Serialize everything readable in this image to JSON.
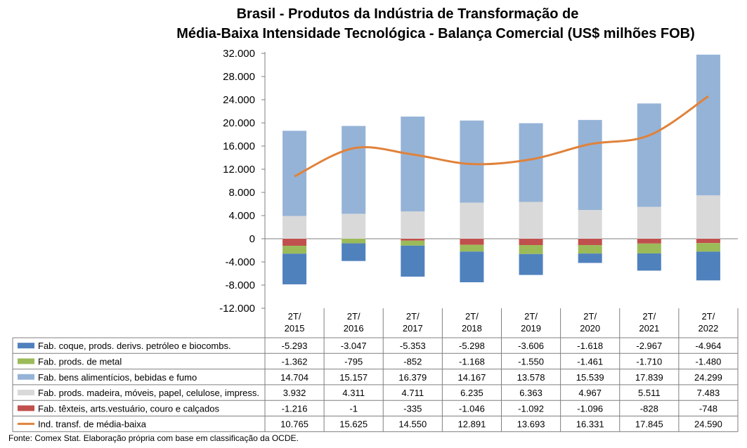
{
  "title_line1": "Brasil - Produtos da Indústria de Transformação de",
  "title_line2": "Média-Baixa Intensidade Tecnológica - Balança Comercial (US$ milhões FOB)",
  "source": "Fonte: Comex Stat. Elaboração própria com base em classificação da OCDE.",
  "chart_data": {
    "type": "bar",
    "stacked": true,
    "title": "Brasil - Produtos da Indústria de Transformação de Média-Baixa Intensidade Tecnológica - Balança Comercial (US$ milhões FOB)",
    "categories": [
      "2T/\n2015",
      "2T/\n2016",
      "2T/\n2017",
      "2T/\n2018",
      "2T/\n2019",
      "2T/\n2020",
      "2T/\n2021",
      "2T/\n2022"
    ],
    "ylim": [
      -12000,
      32000
    ],
    "yticks": [
      32000,
      28000,
      24000,
      20000,
      16000,
      12000,
      8000,
      4000,
      0,
      -4000,
      -8000,
      -12000
    ],
    "ytick_labels": [
      "32.000",
      "28.000",
      "24.000",
      "20.000",
      "16.000",
      "12.000",
      "8.000",
      "4.000",
      "0",
      "-4.000",
      "-8.000",
      "-12.000"
    ],
    "grid": false,
    "legend": "data-table",
    "series": [
      {
        "name": "Fab. coque, prods. derivs. petróleo e biocombs.",
        "color": "#4f81bd",
        "kind": "bar",
        "values": [
          -5293,
          -3047,
          -5353,
          -5298,
          -3606,
          -1618,
          -2967,
          -4964
        ],
        "labels": [
          "-5.293",
          "-3.047",
          "-5.353",
          "-5.298",
          "-3.606",
          "-1.618",
          "-2.967",
          "-4.964"
        ]
      },
      {
        "name": "Fab. prods. de metal",
        "color": "#9bbb59",
        "kind": "bar",
        "values": [
          -1362,
          -795,
          -852,
          -1168,
          -1550,
          -1461,
          -1710,
          -1480
        ],
        "labels": [
          "-1.362",
          "-795",
          "-852",
          "-1.168",
          "-1.550",
          "-1.461",
          "-1.710",
          "-1.480"
        ]
      },
      {
        "name": "Fab. bens alimentícios, bebidas e fumo",
        "color": "#95b3d7",
        "kind": "bar",
        "values": [
          14704,
          15157,
          16379,
          14167,
          13578,
          15539,
          17839,
          24299
        ],
        "labels": [
          "14.704",
          "15.157",
          "16.379",
          "14.167",
          "13.578",
          "15.539",
          "17.839",
          "24.299"
        ]
      },
      {
        "name": "Fab. prods. madeira, móveis, papel, celulose, impress.",
        "color": "#d9d9d9",
        "kind": "bar",
        "values": [
          3932,
          4311,
          4711,
          6235,
          6363,
          4967,
          5511,
          7483
        ],
        "labels": [
          "3.932",
          "4.311",
          "4.711",
          "6.235",
          "6.363",
          "4.967",
          "5.511",
          "7.483"
        ]
      },
      {
        "name": "Fab. têxteis, arts.vestuário, couro e calçados",
        "color": "#c0504d",
        "kind": "bar",
        "values": [
          -1216,
          -1,
          -335,
          -1046,
          -1092,
          -1096,
          -828,
          -748
        ],
        "labels": [
          "-1.216",
          "-1",
          "-335",
          "-1.046",
          "-1.092",
          "-1.096",
          "-828",
          "-748"
        ]
      },
      {
        "name": "Ind. transf. de média-baixa",
        "color": "#e0823a",
        "kind": "line",
        "values": [
          10765,
          15625,
          14550,
          12891,
          13693,
          16331,
          17845,
          24590
        ],
        "labels": [
          "10.765",
          "15.625",
          "14.550",
          "12.891",
          "13.693",
          "16.331",
          "17.845",
          "24.590"
        ]
      }
    ]
  }
}
